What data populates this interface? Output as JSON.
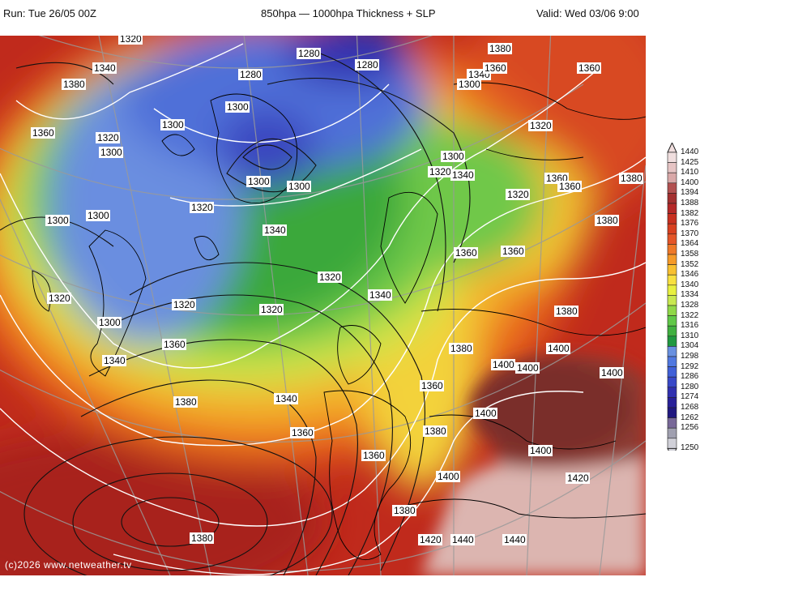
{
  "header": {
    "run": "Run: Tue 26/05 00Z",
    "title": "850hpa — 1000hpa Thickness + SLP",
    "valid": "Valid: Wed 03/06 9:00"
  },
  "copyright": "(c)2026 www.netweather.tv",
  "legend": {
    "values": [
      "1440",
      "1425",
      "1410",
      "1400",
      "1394",
      "1388",
      "1382",
      "1376",
      "1370",
      "1364",
      "1358",
      "1352",
      "1346",
      "1340",
      "1334",
      "1328",
      "1322",
      "1316",
      "1310",
      "1304",
      "1298",
      "1292",
      "1286",
      "1280",
      "1274",
      "1268",
      "1262",
      "1256",
      "1250"
    ],
    "colors": [
      "#f0dede",
      "#e6c4c4",
      "#d9a8a8",
      "#b25050",
      "#a33030",
      "#b52828",
      "#c83020",
      "#d84020",
      "#e45528",
      "#ee7828",
      "#f59a28",
      "#f8c030",
      "#f8e040",
      "#e8f040",
      "#c8e850",
      "#90d848",
      "#60c848",
      "#40b040",
      "#209840",
      "#6890e0",
      "#5078e0",
      "#4060d8",
      "#3848c8",
      "#3030b0",
      "#282098",
      "#201880",
      "#786898",
      "#a0a0b0",
      "#d0d0d8"
    ]
  },
  "map": {
    "labels": [
      {
        "text": "1320"
      },
      {
        "text": "1340"
      },
      {
        "text": "1380"
      },
      {
        "text": "1280"
      },
      {
        "text": "1280"
      },
      {
        "text": "1280"
      },
      {
        "text": "1380"
      },
      {
        "text": "1360"
      },
      {
        "text": "1300"
      },
      {
        "text": "1340"
      },
      {
        "text": "1360"
      },
      {
        "text": "1300"
      },
      {
        "text": "1300"
      },
      {
        "text": "1320"
      },
      {
        "text": "1300"
      },
      {
        "text": "1360"
      },
      {
        "text": "1320"
      },
      {
        "text": "1300"
      },
      {
        "text": "1300"
      },
      {
        "text": "1300"
      },
      {
        "text": "1320"
      },
      {
        "text": "1340"
      },
      {
        "text": "1360"
      },
      {
        "text": "1360"
      },
      {
        "text": "1380"
      },
      {
        "text": "1320"
      },
      {
        "text": "1340"
      },
      {
        "text": "1300"
      },
      {
        "text": "1320"
      },
      {
        "text": "1380"
      },
      {
        "text": "1320"
      },
      {
        "text": "1360"
      },
      {
        "text": "1360"
      },
      {
        "text": "1320"
      },
      {
        "text": "1340"
      },
      {
        "text": "1320"
      },
      {
        "text": "1380"
      },
      {
        "text": "1300"
      },
      {
        "text": "1320"
      },
      {
        "text": "1360"
      },
      {
        "text": "1400"
      },
      {
        "text": "1380"
      },
      {
        "text": "1340"
      },
      {
        "text": "1400"
      },
      {
        "text": "1400"
      },
      {
        "text": "1400"
      },
      {
        "text": "1380"
      },
      {
        "text": "1360"
      },
      {
        "text": "1400"
      },
      {
        "text": "1360"
      },
      {
        "text": "1380"
      },
      {
        "text": "1400"
      },
      {
        "text": "1360"
      },
      {
        "text": "1420"
      },
      {
        "text": "1400"
      },
      {
        "text": "1380"
      },
      {
        "text": "1380"
      },
      {
        "text": "1420"
      },
      {
        "text": "1440"
      },
      {
        "text": "1440"
      },
      {
        "text": "1300"
      },
      {
        "text": "1340"
      }
    ]
  }
}
